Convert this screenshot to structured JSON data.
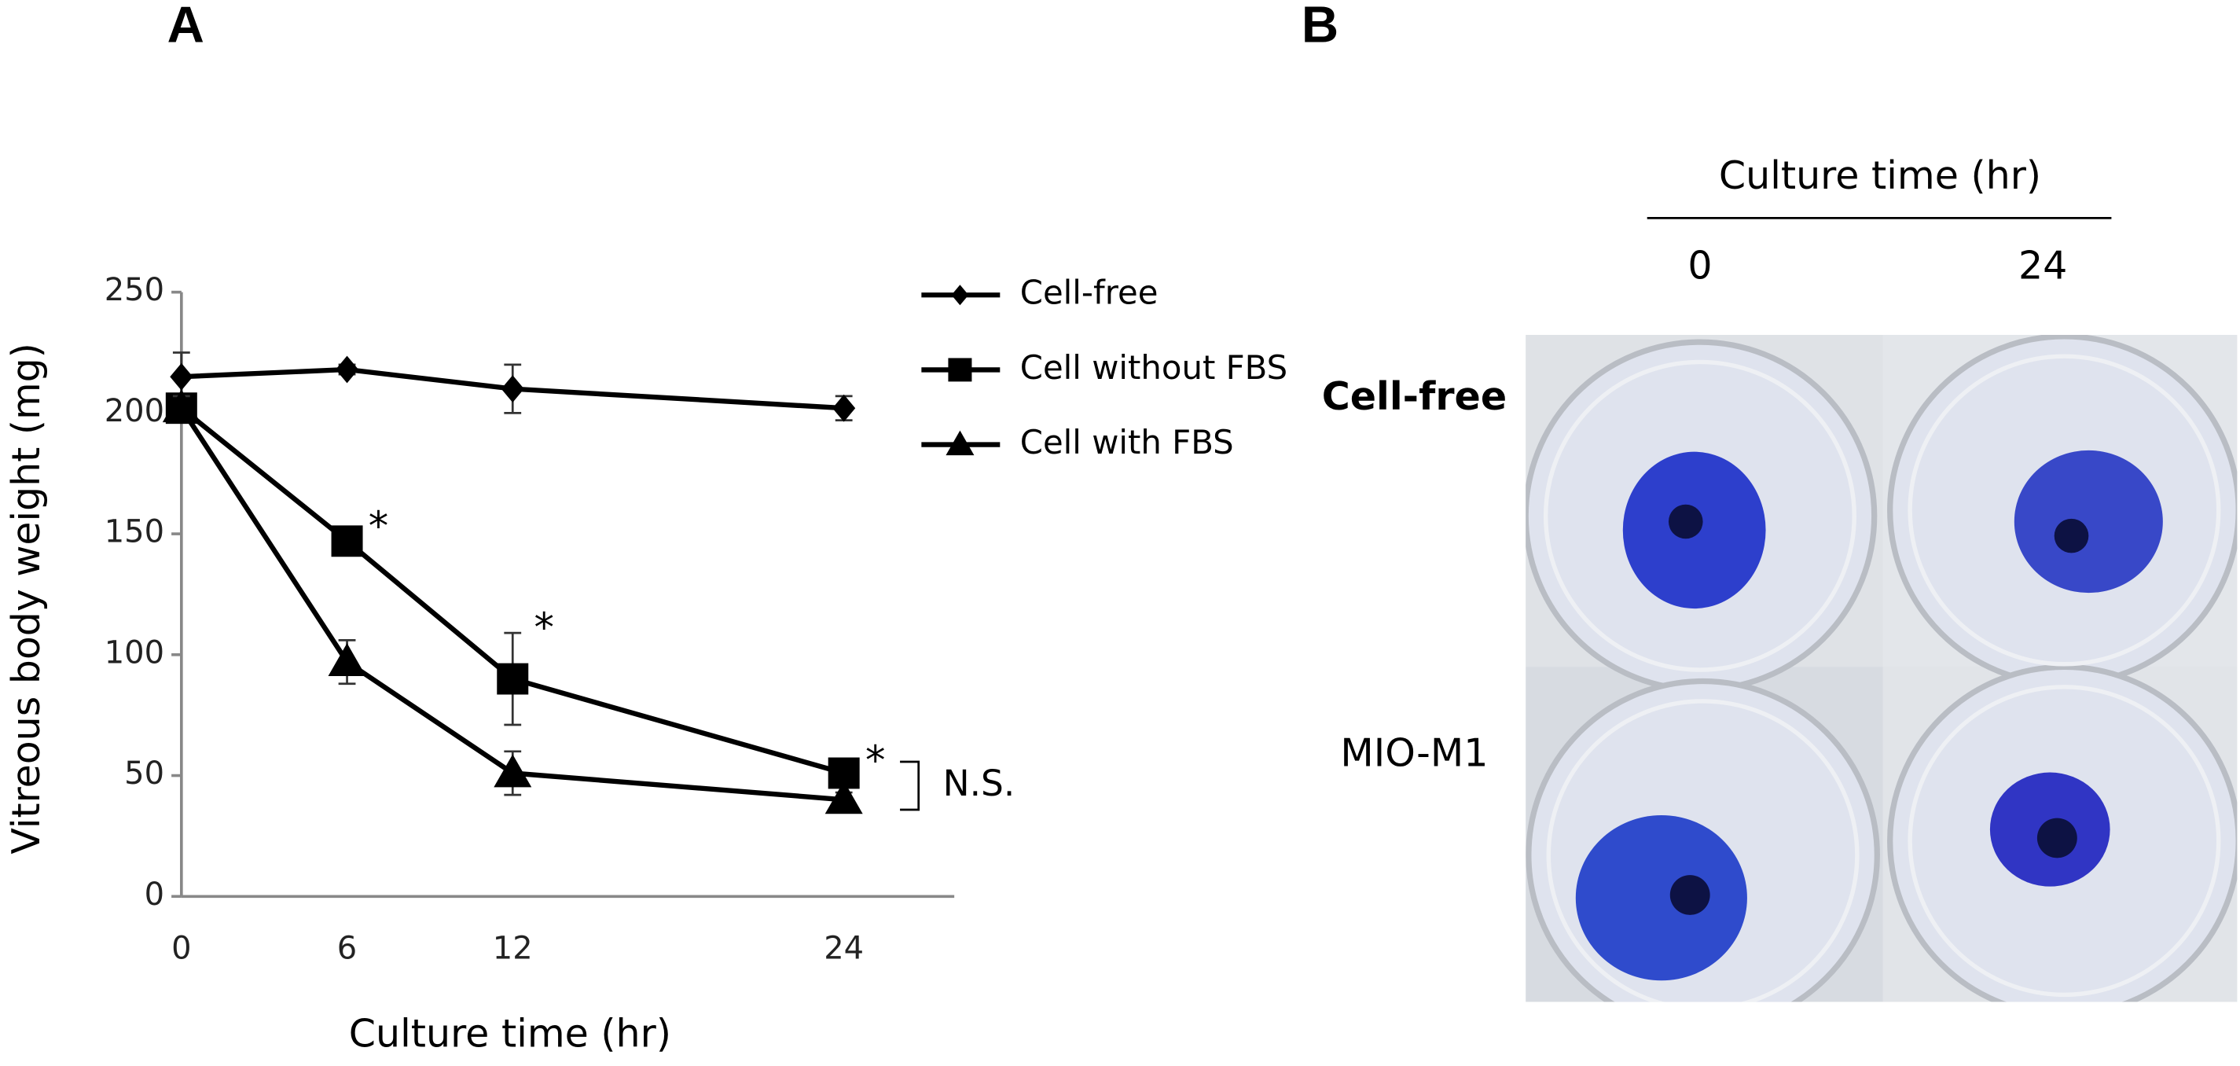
{
  "panel_labels": [
    "A",
    "B"
  ],
  "chart_data": {
    "type": "line",
    "x_label": "Culture time (hr)",
    "y_label": "Vitreous body weight (mg)",
    "x": [
      0,
      6,
      12,
      24
    ],
    "xlim": [
      0,
      28
    ],
    "xticks": [
      0,
      6,
      12,
      24
    ],
    "ylim": [
      0,
      250
    ],
    "yticks": [
      0,
      50,
      100,
      150,
      200,
      250
    ],
    "legend": "upper right",
    "series": [
      {
        "name": "Cell-free",
        "color": "#000000",
        "marker": "diamond",
        "values": [
          215,
          218,
          210,
          202
        ],
        "errors": [
          10,
          2,
          10,
          5
        ]
      },
      {
        "name": "Cell without FBS",
        "color": "#000000",
        "marker": "square",
        "values": [
          202,
          147,
          90,
          51
        ],
        "errors": [
          5,
          4,
          19,
          3
        ],
        "point_labels": [
          null,
          "*",
          "*",
          "*"
        ]
      },
      {
        "name": "Cell with FBS",
        "color": "#000000",
        "marker": "triangle",
        "values": [
          202,
          97,
          51,
          40
        ],
        "errors": [
          5,
          9,
          9,
          3
        ]
      }
    ],
    "bracket_label": "N.S."
  },
  "photo_panel": {
    "header": "Culture time (hr)",
    "columns": [
      "0",
      "24"
    ],
    "rows": [
      "Cell-free",
      "MIO-M1"
    ]
  }
}
